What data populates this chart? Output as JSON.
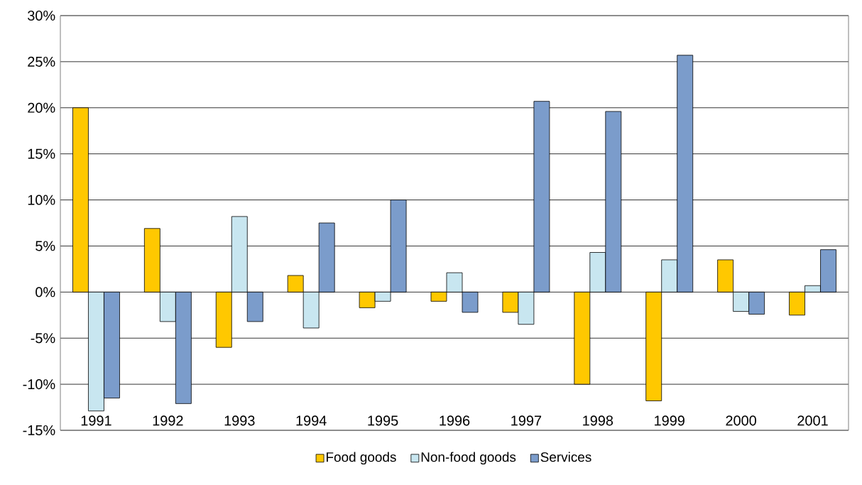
{
  "chart_data": {
    "type": "bar",
    "categories": [
      "1991",
      "1992",
      "1993",
      "1994",
      "1995",
      "1996",
      "1997",
      "1998",
      "1999",
      "2000",
      "2001"
    ],
    "series": [
      {
        "name": "Food goods",
        "color": "#ffc800",
        "values": [
          20,
          6.9,
          -6.0,
          1.8,
          -1.7,
          -1.0,
          -2.2,
          -10,
          -11.8,
          3.5,
          -2.5
        ]
      },
      {
        "name": "Non-food goods",
        "color": "#c8e6f0",
        "values": [
          -12.9,
          -3.2,
          8.2,
          -3.9,
          -1.0,
          2.1,
          -3.5,
          4.3,
          3.5,
          -2.1,
          0.7
        ]
      },
      {
        "name": "Services",
        "color": "#7b9ccb",
        "values": [
          -11.5,
          -12.1,
          -3.2,
          7.5,
          10.0,
          -2.2,
          20.7,
          19.6,
          25.7,
          -2.4,
          4.6
        ]
      }
    ],
    "ylim": [
      -15,
      30
    ],
    "yticks": [
      {
        "value": -15,
        "label": "-15%"
      },
      {
        "value": -10,
        "label": "-10%"
      },
      {
        "value": -5,
        "label": "-5%"
      },
      {
        "value": 0,
        "label": "0%"
      },
      {
        "value": 5,
        "label": "5%"
      },
      {
        "value": 10,
        "label": "10%"
      },
      {
        "value": 15,
        "label": "15%"
      },
      {
        "value": 20,
        "label": "20%"
      },
      {
        "value": 25,
        "label": "25%"
      },
      {
        "value": 30,
        "label": "30%"
      }
    ],
    "grid": "y",
    "legend": "bottom"
  }
}
